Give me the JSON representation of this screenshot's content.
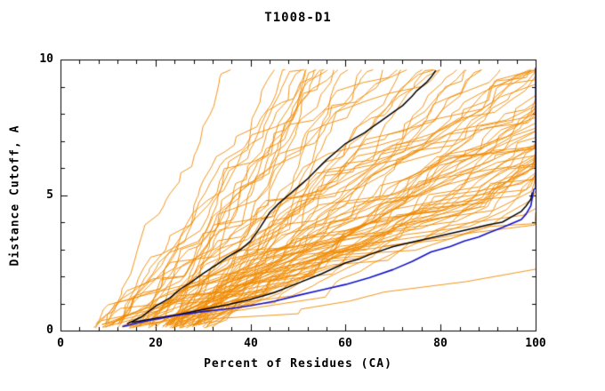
{
  "title": "T1008-D1",
  "colors": {
    "frame": "#000000",
    "text": "#000000",
    "predictions": "#ef8a00",
    "highlight_black": "#000000",
    "highlight_blue": "#1212cc",
    "background": "#ffffff"
  },
  "chart_data": {
    "type": "line",
    "title": "T1008-D1",
    "xlabel": "Percent of Residues (CA)",
    "ylabel": "Distance Cutoff, A",
    "xlim": [
      0,
      100
    ],
    "ylim": [
      0,
      10
    ],
    "grid": false,
    "legend": "none",
    "x_ticks": [
      0,
      20,
      40,
      60,
      80,
      100
    ],
    "y_ticks": [
      0,
      5,
      10
    ],
    "ticks": {
      "x_major": 20,
      "x_minor": 4,
      "y_major": 5,
      "y_minor": 1
    },
    "series": [
      {
        "name": "prediction-black-upper",
        "color": "#000000",
        "width": 1.5,
        "points": [
          [
            14,
            0.25
          ],
          [
            17,
            0.5
          ],
          [
            20,
            0.9
          ],
          [
            23,
            1.2
          ],
          [
            25,
            1.5
          ],
          [
            28,
            1.85
          ],
          [
            30,
            2.1
          ],
          [
            33,
            2.45
          ],
          [
            35,
            2.7
          ],
          [
            38,
            3.0
          ],
          [
            40,
            3.3
          ],
          [
            42,
            3.8
          ],
          [
            44,
            4.35
          ],
          [
            46,
            4.7
          ],
          [
            48,
            5.0
          ],
          [
            50,
            5.3
          ],
          [
            52,
            5.6
          ],
          [
            54,
            5.95
          ],
          [
            56,
            6.3
          ],
          [
            58,
            6.6
          ],
          [
            60,
            6.9
          ],
          [
            62,
            7.1
          ],
          [
            64,
            7.3
          ],
          [
            66,
            7.55
          ],
          [
            68,
            7.8
          ],
          [
            70,
            8.05
          ],
          [
            72,
            8.3
          ],
          [
            74,
            8.65
          ],
          [
            75,
            8.85
          ],
          [
            77,
            9.15
          ],
          [
            78,
            9.35
          ],
          [
            79,
            9.6
          ]
        ]
      },
      {
        "name": "prediction-black-lower",
        "color": "#000000",
        "width": 1.5,
        "points": [
          [
            15,
            0.3
          ],
          [
            20,
            0.45
          ],
          [
            25,
            0.6
          ],
          [
            30,
            0.78
          ],
          [
            35,
            0.95
          ],
          [
            40,
            1.15
          ],
          [
            45,
            1.4
          ],
          [
            50,
            1.75
          ],
          [
            55,
            2.1
          ],
          [
            60,
            2.5
          ],
          [
            63,
            2.65
          ],
          [
            65,
            2.8
          ],
          [
            70,
            3.1
          ],
          [
            75,
            3.3
          ],
          [
            80,
            3.5
          ],
          [
            85,
            3.7
          ],
          [
            90,
            3.9
          ],
          [
            93,
            4.0
          ],
          [
            95,
            4.2
          ],
          [
            97,
            4.4
          ],
          [
            98,
            4.6
          ],
          [
            99,
            4.85
          ],
          [
            99.3,
            5.1
          ]
        ]
      },
      {
        "name": "best-model-blue",
        "color": "#1212cc",
        "width": 1.6,
        "points": [
          [
            13,
            0.15
          ],
          [
            18,
            0.35
          ],
          [
            24,
            0.55
          ],
          [
            30,
            0.7
          ],
          [
            36,
            0.82
          ],
          [
            40,
            0.92
          ],
          [
            45,
            1.08
          ],
          [
            50,
            1.3
          ],
          [
            55,
            1.5
          ],
          [
            60,
            1.7
          ],
          [
            65,
            1.95
          ],
          [
            70,
            2.25
          ],
          [
            74,
            2.55
          ],
          [
            78,
            2.9
          ],
          [
            82,
            3.1
          ],
          [
            85,
            3.3
          ],
          [
            88,
            3.45
          ],
          [
            90,
            3.6
          ],
          [
            93,
            3.8
          ],
          [
            95,
            3.95
          ],
          [
            97,
            4.1
          ],
          [
            98,
            4.3
          ],
          [
            99,
            4.6
          ],
          [
            99.6,
            5.2
          ],
          [
            100,
            5.25
          ],
          [
            100,
            9.7
          ]
        ]
      }
    ],
    "ensemble": {
      "name": "server-predictions-orange",
      "color": "#ef8a00",
      "width": 0.9,
      "count": 88,
      "seed": 1008,
      "x_start_range": [
        7,
        32
      ],
      "y_top": 9.62,
      "note": "many monotonically rising distance-cutoff curves between steep (top reached near x=28) and shallow (clipped at x=100 near y=4-7)"
    }
  }
}
